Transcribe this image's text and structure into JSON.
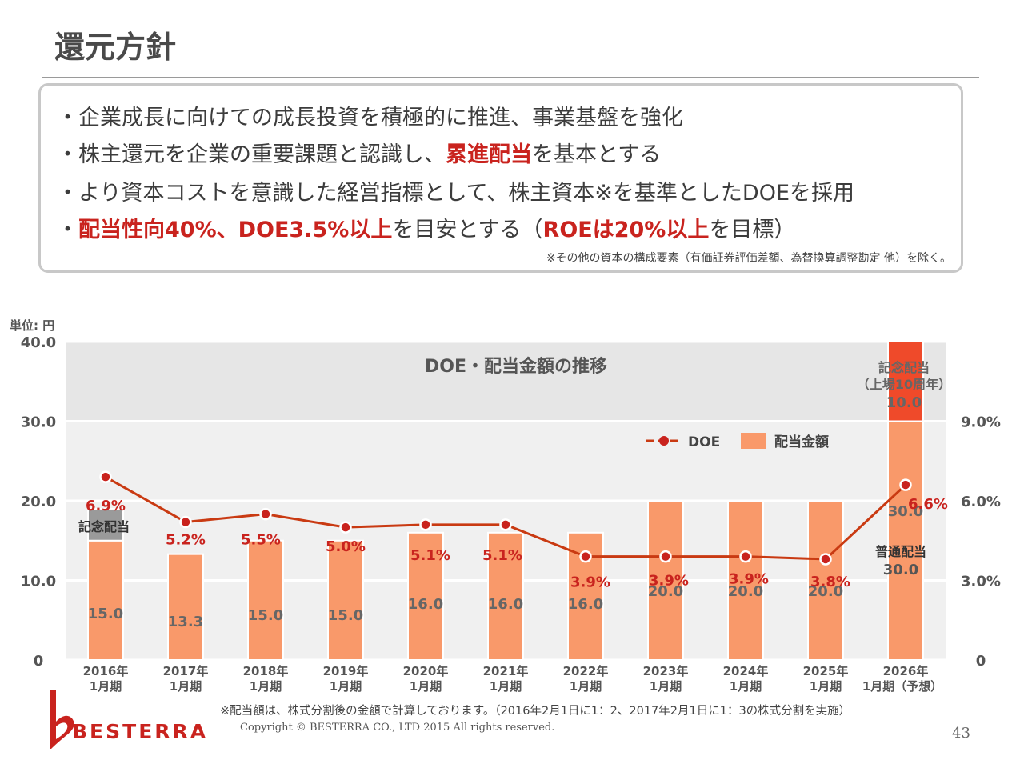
{
  "page": {
    "title": "還元方針",
    "bullets": [
      {
        "parts": [
          "・企業成長に向けての成長投資を積極的に推進、事業基盤を強化"
        ]
      },
      {
        "parts": [
          "・株主還元を企業の重要課題と認識し、",
          "累進配当",
          "を基本とする"
        ]
      },
      {
        "parts": [
          "・より資本コストを意識した経営指標として、株主資本※を基準としたDOEを採用"
        ]
      },
      {
        "parts": [
          "・",
          "配当性向40%、DOE3.5%以上",
          "を目安とする（",
          "ROEは20%以上",
          "を目標）"
        ]
      }
    ],
    "box_note": "※その他の資本の構成要素（有価証券評価差額、為替換算調整勘定 他）を除く。",
    "unit_label": "単位: 円",
    "footnote": "※配当額は、株式分割後の金額で計算しております。（2016年2月1日に1：2、2017年2月1日に1：3の株式分割を実施）",
    "copyright": "Copyright © BESTERRA CO., LTD 2015 All rights reserved.",
    "page_number": "43",
    "logo_text": "BESTERRA"
  },
  "colors": {
    "accent_red": "#c9231e",
    "bar_orange": "#f9996a",
    "bar_gray": "#9a9a9a",
    "bar_commemorative_red": "#ef4a2a",
    "doe_line": "#c93a12",
    "doe_marker": "#c9231e",
    "plot_bg": "#f0f0f0",
    "top_band": "#e6e6e6"
  },
  "chart_data": {
    "type": "bar",
    "title": "DOE・配当金額の推移",
    "categories": [
      [
        "2016年",
        "1月期"
      ],
      [
        "2017年",
        "1月期"
      ],
      [
        "2018年",
        "1月期"
      ],
      [
        "2019年",
        "1月期"
      ],
      [
        "2020年",
        "1月期"
      ],
      [
        "2021年",
        "1月期"
      ],
      [
        "2022年",
        "1月期"
      ],
      [
        "2023年",
        "1月期"
      ],
      [
        "2024年",
        "1月期"
      ],
      [
        "2025年",
        "1月期"
      ],
      [
        "2026年",
        "1月期（予想）"
      ]
    ],
    "left_axis": {
      "ticks": [
        "0",
        "10.0",
        "20.0",
        "30.0",
        "40.0"
      ],
      "ylim": [
        0,
        40
      ]
    },
    "right_axis": {
      "ticks": [
        "0",
        "3.0%",
        "6.0%",
        "9.0%"
      ],
      "ylim": [
        0,
        12
      ]
    },
    "series": [
      {
        "name": "配当金額",
        "kind": "bar",
        "values": [
          15.0,
          13.3,
          15.0,
          15.0,
          16.0,
          16.0,
          16.0,
          20.0,
          20.0,
          20.0,
          30.0
        ],
        "labels": [
          "15.0",
          "13.3",
          "15.0",
          "15.0",
          "16.0",
          "16.0",
          "16.0",
          "20.0",
          "20.0",
          "20.0",
          "30.0"
        ]
      },
      {
        "name": "記念配当",
        "kind": "bar-stack",
        "values": [
          4.0,
          0,
          0,
          0,
          0,
          0,
          0,
          0,
          0,
          0,
          10.0
        ],
        "labels": [
          "",
          "",
          "",
          "",
          "",
          "",
          "",
          "",
          "",
          "",
          "10.0"
        ]
      },
      {
        "name": "DOE",
        "kind": "line",
        "values": [
          6.9,
          5.2,
          5.5,
          5.0,
          5.1,
          5.1,
          3.9,
          3.9,
          3.9,
          3.8,
          6.6
        ],
        "labels": [
          "6.9%",
          "5.2%",
          "5.5%",
          "5.0%",
          "5.1%",
          "5.1%",
          "3.9%",
          "3.9%",
          "3.9%",
          "3.8%",
          "6.6%"
        ]
      }
    ],
    "annotations": {
      "commemorative_2016": "記念配当",
      "commemorative_2026": [
        "記念配当",
        "（上場10周年）"
      ],
      "regular_2026": "普通配当"
    },
    "legend": {
      "position": "top-right",
      "items": [
        "DOE",
        "配当金額"
      ]
    }
  }
}
